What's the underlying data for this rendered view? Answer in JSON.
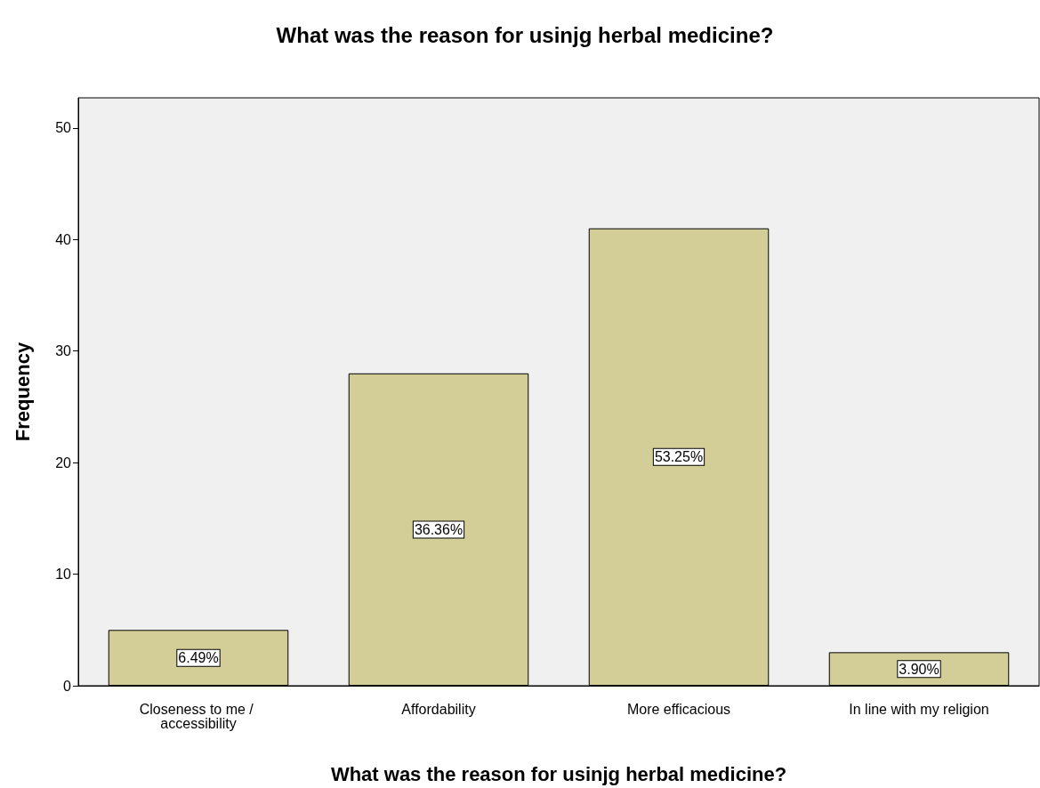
{
  "chart_data": {
    "type": "bar",
    "title": "What was the reason for usinjg herbal medicine?",
    "xlabel": "What was the reason for usinjg herbal medicine?",
    "ylabel": "Frequency",
    "categories": [
      "Closeness to me / accessibility",
      "Affordability",
      "More efficacious",
      "In line with my religion"
    ],
    "values": [
      5,
      28,
      41,
      3
    ],
    "annotations": [
      "6.49%",
      "36.36%",
      "53.25%",
      "3.90%"
    ],
    "color": "#d3ce97",
    "ylim": [
      0,
      52.7
    ],
    "yticks": [
      0,
      10,
      20,
      30,
      40,
      50
    ],
    "grid": false
  }
}
